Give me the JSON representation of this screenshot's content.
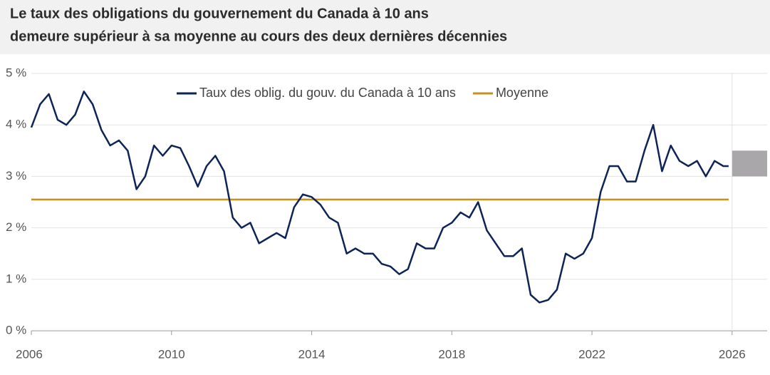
{
  "chart_data": {
    "type": "line",
    "title": "Le taux des obligations du gouvernement du Canada à 10 ans",
    "subtitle": "demeure supérieur à sa moyenne au cours des deux dernières décennies",
    "x": [
      2006.0,
      2006.25,
      2006.5,
      2006.75,
      2007.0,
      2007.25,
      2007.5,
      2007.75,
      2008.0,
      2008.25,
      2008.5,
      2008.75,
      2009.0,
      2009.25,
      2009.5,
      2009.75,
      2010.0,
      2010.25,
      2010.5,
      2010.75,
      2011.0,
      2011.25,
      2011.5,
      2011.75,
      2012.0,
      2012.25,
      2012.5,
      2012.75,
      2013.0,
      2013.25,
      2013.5,
      2013.75,
      2014.0,
      2014.25,
      2014.5,
      2014.75,
      2015.0,
      2015.25,
      2015.5,
      2015.75,
      2016.0,
      2016.25,
      2016.5,
      2016.75,
      2017.0,
      2017.25,
      2017.5,
      2017.75,
      2018.0,
      2018.25,
      2018.5,
      2018.75,
      2019.0,
      2019.25,
      2019.5,
      2019.75,
      2020.0,
      2020.25,
      2020.5,
      2020.75,
      2021.0,
      2021.25,
      2021.5,
      2021.75,
      2022.0,
      2022.25,
      2022.5,
      2022.75,
      2023.0,
      2023.25,
      2023.5,
      2023.75,
      2024.0,
      2024.25,
      2024.5,
      2024.75,
      2025.0,
      2025.25,
      2025.5,
      2025.75,
      2025.9
    ],
    "series": [
      {
        "name": "Taux des oblig. du gouv. du Canada à 10 ans",
        "color": "#0d2457",
        "values": [
          3.95,
          4.4,
          4.6,
          4.1,
          4.0,
          4.2,
          4.65,
          4.4,
          3.9,
          3.6,
          3.7,
          3.5,
          2.75,
          3.0,
          3.6,
          3.4,
          3.6,
          3.55,
          3.2,
          2.8,
          3.2,
          3.4,
          3.1,
          2.2,
          2.0,
          2.1,
          1.7,
          1.8,
          1.9,
          1.8,
          2.4,
          2.65,
          2.6,
          2.45,
          2.2,
          2.1,
          1.5,
          1.6,
          1.5,
          1.5,
          1.3,
          1.25,
          1.1,
          1.2,
          1.7,
          1.6,
          1.6,
          2.0,
          2.1,
          2.3,
          2.2,
          2.5,
          1.95,
          1.7,
          1.45,
          1.45,
          1.6,
          0.7,
          0.55,
          0.6,
          0.8,
          1.5,
          1.4,
          1.5,
          1.8,
          2.7,
          3.2,
          3.2,
          2.9,
          2.9,
          3.5,
          4.0,
          3.1,
          3.6,
          3.3,
          3.2,
          3.3,
          3.0,
          3.3,
          3.2,
          3.2
        ]
      },
      {
        "name": "Moyenne",
        "color": "#c8901e",
        "values": [
          2.55,
          2.55,
          2.55,
          2.55,
          2.55,
          2.55,
          2.55,
          2.55,
          2.55,
          2.55,
          2.55,
          2.55,
          2.55,
          2.55,
          2.55,
          2.55,
          2.55,
          2.55,
          2.55,
          2.55,
          2.55,
          2.55,
          2.55,
          2.55,
          2.55,
          2.55,
          2.55,
          2.55,
          2.55,
          2.55,
          2.55,
          2.55,
          2.55,
          2.55,
          2.55,
          2.55,
          2.55,
          2.55,
          2.55,
          2.55,
          2.55,
          2.55,
          2.55,
          2.55,
          2.55,
          2.55,
          2.55,
          2.55,
          2.55,
          2.55,
          2.55,
          2.55,
          2.55,
          2.55,
          2.55,
          2.55,
          2.55,
          2.55,
          2.55,
          2.55,
          2.55,
          2.55,
          2.55,
          2.55,
          2.55,
          2.55,
          2.55,
          2.55,
          2.55,
          2.55,
          2.55,
          2.55,
          2.55,
          2.55,
          2.55,
          2.55,
          2.55,
          2.55,
          2.55,
          2.55,
          2.55
        ]
      }
    ],
    "shaded_range": {
      "x": [
        2026.0,
        2027.0
      ],
      "y": [
        3.0,
        3.5
      ],
      "color": "#aaa7ab"
    },
    "xlim": [
      2006,
      2027
    ],
    "xticks": [
      2006,
      2010,
      2014,
      2018,
      2022,
      2026
    ],
    "ylim": [
      0,
      5
    ],
    "yticks": [
      {
        "value": 0,
        "label": "0 %"
      },
      {
        "value": 1,
        "label": "1 %"
      },
      {
        "value": 2,
        "label": "2 %"
      },
      {
        "value": 3,
        "label": "3 %"
      },
      {
        "value": 4,
        "label": "4 %"
      },
      {
        "value": 5,
        "label": "5 %"
      }
    ],
    "grid": true,
    "legend": "top"
  }
}
